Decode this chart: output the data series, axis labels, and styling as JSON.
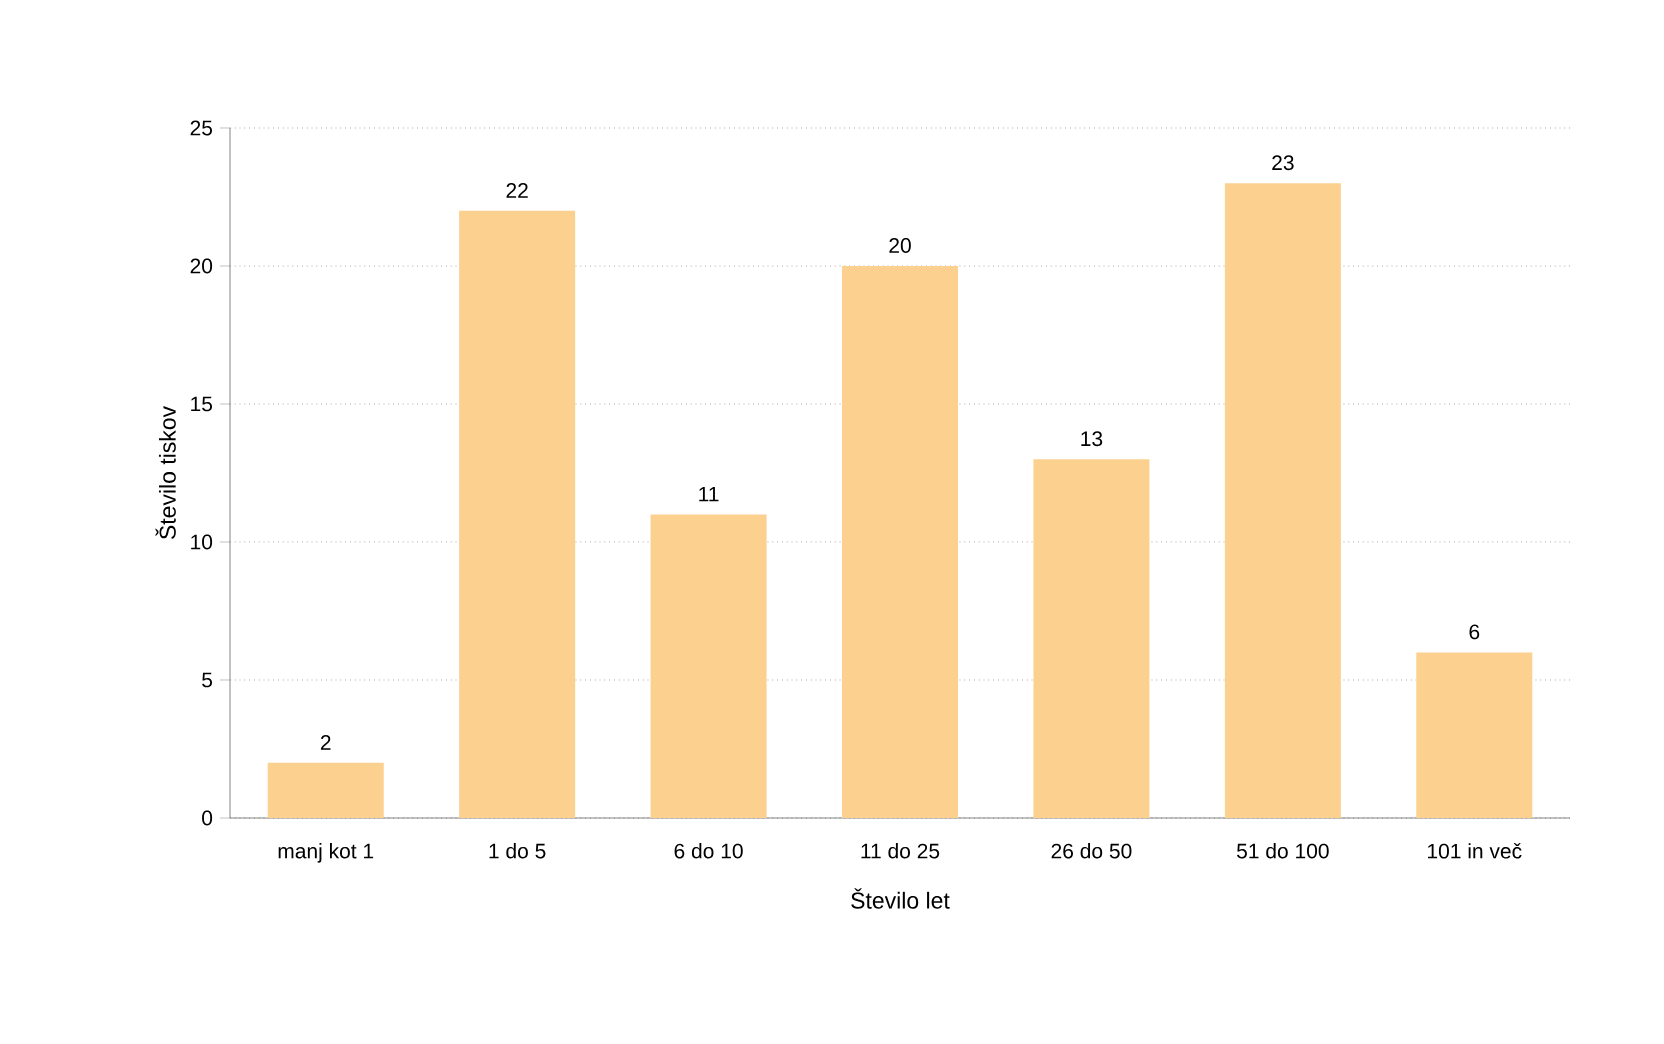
{
  "chart_data": {
    "type": "bar",
    "categories": [
      "manj kot 1",
      "1 do 5",
      "6 do 10",
      "11 do 25",
      "26 do 50",
      "51 do 100",
      "101 in več"
    ],
    "values": [
      2,
      22,
      11,
      20,
      13,
      23,
      6
    ],
    "color": "#fcd08f",
    "xlabel": "Število let",
    "ylabel": "Število tiskov",
    "ylim": [
      0,
      25
    ],
    "yticks": [
      0,
      5,
      10,
      15,
      20,
      25
    ],
    "grid": "y",
    "data_labels": true
  }
}
